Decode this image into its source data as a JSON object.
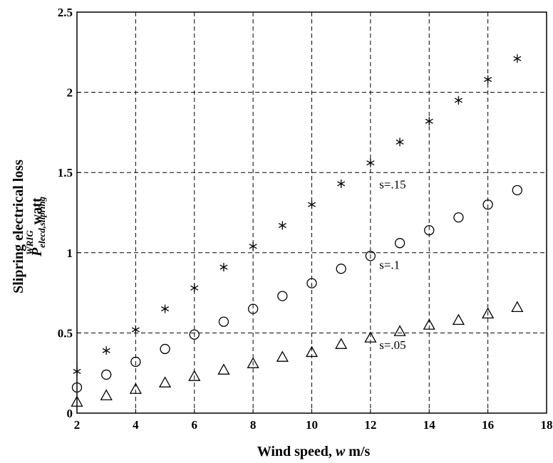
{
  "chart_data": {
    "type": "scatter",
    "xlabel_prefix": "Wind speed, ",
    "xlabel_var": "w",
    "xlabel_suffix": " m/s",
    "ylabel_line1": "Slipring electrical loss",
    "ylabel_line2_sym": "P",
    "ylabel_line2_sub": "elecd,slipring",
    "ylabel_line2_sup": "WRIG",
    "ylabel_line2_unit": "watt",
    "xlim": [
      2,
      18
    ],
    "ylim": [
      0,
      2.5
    ],
    "xticks": [
      2,
      4,
      6,
      8,
      10,
      12,
      14,
      16,
      18
    ],
    "yticks": [
      0,
      0.5,
      1,
      1.5,
      2,
      2.5
    ],
    "xtick_labels": [
      "2",
      "4",
      "6",
      "8",
      "10",
      "12",
      "14",
      "16",
      "18"
    ],
    "ytick_labels": [
      "0",
      "0.5",
      "1",
      "1.5",
      "2",
      "2.5"
    ],
    "grid": true,
    "series": [
      {
        "name": "s=.15",
        "marker": "star",
        "x": [
          2,
          3,
          4,
          5,
          6,
          7,
          8,
          9,
          10,
          11,
          12,
          13,
          14,
          15,
          16,
          17
        ],
        "y": [
          0.26,
          0.39,
          0.52,
          0.65,
          0.78,
          0.91,
          1.04,
          1.17,
          1.3,
          1.43,
          1.56,
          1.69,
          1.82,
          1.95,
          2.08,
          2.21
        ]
      },
      {
        "name": "s=.1",
        "marker": "circle",
        "x": [
          2,
          3,
          4,
          5,
          6,
          7,
          8,
          9,
          10,
          11,
          12,
          13,
          14,
          15,
          16,
          17
        ],
        "y": [
          0.16,
          0.24,
          0.32,
          0.4,
          0.49,
          0.57,
          0.65,
          0.73,
          0.81,
          0.9,
          0.98,
          1.06,
          1.14,
          1.22,
          1.3,
          1.39
        ]
      },
      {
        "name": "s=.05",
        "marker": "triangle",
        "x": [
          2,
          3,
          4,
          5,
          6,
          7,
          8,
          9,
          10,
          11,
          12,
          13,
          14,
          15,
          16,
          17
        ],
        "y": [
          0.07,
          0.11,
          0.15,
          0.19,
          0.23,
          0.27,
          0.31,
          0.35,
          0.38,
          0.43,
          0.47,
          0.51,
          0.55,
          0.58,
          0.62,
          0.66
        ]
      }
    ],
    "annotations": [
      {
        "text": "s=.15",
        "x": 12.3,
        "y": 1.4
      },
      {
        "text": "s=.1",
        "x": 12.3,
        "y": 0.9
      },
      {
        "text": "s=.05",
        "x": 12.3,
        "y": 0.4
      }
    ]
  }
}
